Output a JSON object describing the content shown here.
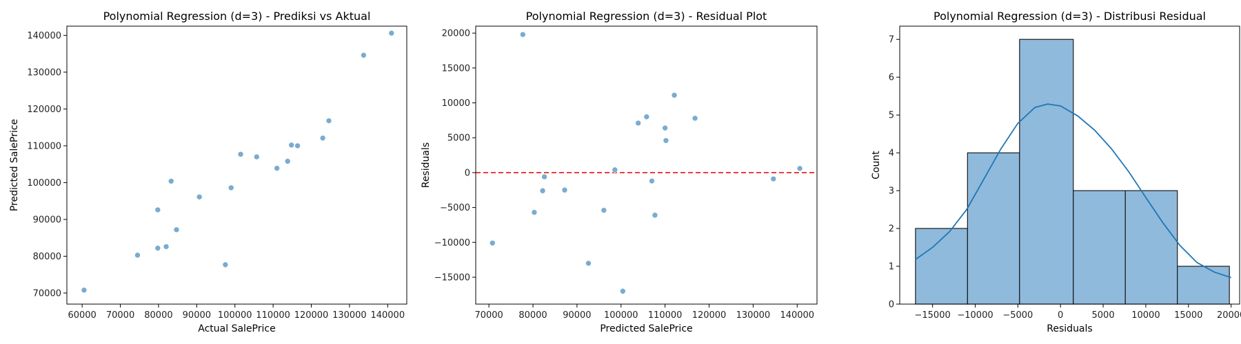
{
  "chart_data": [
    {
      "type": "scatter",
      "title": "Polynomial Regression (d=3) - Prediksi vs Aktual",
      "xlabel": "Actual SalePrice",
      "ylabel": "Predicted SalePrice",
      "xlim": [
        56000,
        145000
      ],
      "ylim": [
        67000,
        142500
      ],
      "xticks": [
        60000,
        70000,
        80000,
        90000,
        100000,
        110000,
        120000,
        130000,
        140000
      ],
      "yticks": [
        70000,
        80000,
        90000,
        100000,
        110000,
        120000,
        130000,
        140000
      ],
      "color": "#7aabd0",
      "points": [
        [
          60500,
          70800
        ],
        [
          74500,
          80300
        ],
        [
          79800,
          92600
        ],
        [
          79800,
          82200
        ],
        [
          82000,
          82600
        ],
        [
          83300,
          100400
        ],
        [
          84700,
          87200
        ],
        [
          90700,
          96100
        ],
        [
          97500,
          77700
        ],
        [
          99000,
          98600
        ],
        [
          101500,
          107700
        ],
        [
          105700,
          107000
        ],
        [
          111000,
          103900
        ],
        [
          113800,
          105800
        ],
        [
          114800,
          110200
        ],
        [
          116400,
          110000
        ],
        [
          123000,
          112100
        ],
        [
          124600,
          116800
        ],
        [
          133700,
          134600
        ],
        [
          141000,
          140600
        ]
      ]
    },
    {
      "type": "scatter",
      "title": "Polynomial Regression (d=3) - Residual Plot",
      "xlabel": "Predicted SalePrice",
      "ylabel": "Residuals",
      "xlim": [
        67000,
        144500
      ],
      "ylim": [
        -18850,
        21000
      ],
      "xticks": [
        70000,
        80000,
        90000,
        100000,
        110000,
        120000,
        130000,
        140000
      ],
      "yticks": [
        -15000,
        -10000,
        -5000,
        0,
        5000,
        10000,
        15000,
        20000
      ],
      "color": "#7aabd0",
      "reference_line": {
        "y": 0,
        "color": "#e8231f",
        "style": "dashed"
      },
      "points": [
        [
          70800,
          -10100
        ],
        [
          77700,
          19800
        ],
        [
          80300,
          -5700
        ],
        [
          82200,
          -2600
        ],
        [
          82600,
          -600
        ],
        [
          87200,
          -2500
        ],
        [
          92600,
          -13000
        ],
        [
          96100,
          -5400
        ],
        [
          98600,
          400
        ],
        [
          100400,
          -17000
        ],
        [
          103900,
          7100
        ],
        [
          105800,
          8000
        ],
        [
          107000,
          -1200
        ],
        [
          107700,
          -6100
        ],
        [
          110000,
          6400
        ],
        [
          110200,
          4600
        ],
        [
          112100,
          11100
        ],
        [
          116800,
          7800
        ],
        [
          134600,
          -900
        ],
        [
          140600,
          600
        ]
      ]
    },
    {
      "type": "histogram",
      "title": "Polynomial Regression (d=3) - Distribusi Residual",
      "xlabel": "Residuals",
      "ylabel": "Count",
      "xlim": [
        -18850,
        21000
      ],
      "ylim": [
        0,
        7.35
      ],
      "xticks": [
        -15000,
        -10000,
        -5000,
        0,
        5000,
        10000,
        15000,
        20000
      ],
      "yticks": [
        0,
        1,
        2,
        3,
        4,
        5,
        6,
        7
      ],
      "bar_color": "#8fbadc",
      "edge_color": "#1a1a1a",
      "kde_color": "#1f77b4",
      "bins": [
        {
          "start": -17000,
          "end": -10900,
          "count": 2
        },
        {
          "start": -10900,
          "end": -4800,
          "count": 4
        },
        {
          "start": -4800,
          "end": 1500,
          "count": 7
        },
        {
          "start": 1500,
          "end": 7600,
          "count": 3
        },
        {
          "start": 7600,
          "end": 13700,
          "count": 3
        },
        {
          "start": 13700,
          "end": 19800,
          "count": 1
        }
      ],
      "kde": [
        [
          -17000,
          1.18
        ],
        [
          -15000,
          1.5
        ],
        [
          -13000,
          1.92
        ],
        [
          -11000,
          2.5
        ],
        [
          -9000,
          3.3
        ],
        [
          -7000,
          4.1
        ],
        [
          -5000,
          4.78
        ],
        [
          -3000,
          5.2
        ],
        [
          -1500,
          5.29
        ],
        [
          0,
          5.24
        ],
        [
          2000,
          4.98
        ],
        [
          4000,
          4.6
        ],
        [
          6000,
          4.1
        ],
        [
          8000,
          3.5
        ],
        [
          10000,
          2.82
        ],
        [
          12000,
          2.15
        ],
        [
          14000,
          1.55
        ],
        [
          16000,
          1.1
        ],
        [
          18000,
          0.85
        ],
        [
          20000,
          0.7
        ]
      ]
    }
  ]
}
